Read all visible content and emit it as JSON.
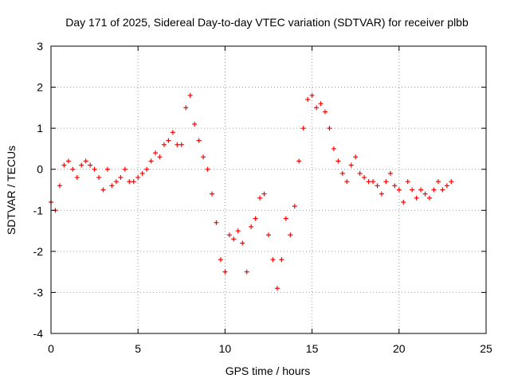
{
  "chart_data": {
    "type": "scatter",
    "title": "Day 171 of 2025, Sidereal Day-to-day VTEC variation (SDTVAR) for receiver plbb",
    "xlabel": "GPS time / hours",
    "ylabel": "SDTVAR / TECUs",
    "xlim": [
      0,
      25
    ],
    "ylim": [
      -4,
      3
    ],
    "x_ticks": [
      0,
      5,
      10,
      15,
      20,
      25
    ],
    "y_ticks": [
      -4,
      -3,
      -2,
      -1,
      0,
      1,
      2,
      3
    ],
    "grid": true,
    "marker": "+",
    "color": "#ff0000",
    "series": [
      {
        "name": "SDTVAR",
        "x": [
          0.0,
          0.25,
          0.5,
          0.75,
          1.0,
          1.25,
          1.5,
          1.75,
          2.0,
          2.25,
          2.5,
          2.75,
          3.0,
          3.25,
          3.5,
          3.75,
          4.0,
          4.25,
          4.5,
          4.75,
          5.0,
          5.25,
          5.5,
          5.75,
          6.0,
          6.25,
          6.5,
          6.75,
          7.0,
          7.25,
          7.5,
          7.75,
          8.0,
          8.25,
          8.5,
          8.75,
          9.0,
          9.25,
          9.5,
          9.75,
          10.0,
          10.25,
          10.5,
          10.75,
          11.0,
          11.25,
          11.5,
          11.75,
          12.0,
          12.25,
          12.5,
          12.75,
          13.0,
          13.25,
          13.5,
          13.75,
          14.0,
          14.25,
          14.5,
          14.75,
          15.0,
          15.25,
          15.5,
          15.75,
          16.0,
          16.25,
          16.5,
          16.75,
          17.0,
          17.25,
          17.5,
          17.75,
          18.0,
          18.25,
          18.5,
          18.75,
          19.0,
          19.25,
          19.5,
          19.75,
          20.0,
          20.25,
          20.5,
          20.75,
          21.0,
          21.25,
          21.5,
          21.75,
          22.0,
          22.25,
          22.5,
          22.75,
          23.0
        ],
        "values": [
          -0.8,
          -1.0,
          -0.4,
          0.1,
          0.2,
          0.0,
          -0.2,
          0.1,
          0.2,
          0.1,
          0.0,
          -0.2,
          -0.5,
          0.0,
          -0.4,
          -0.3,
          -0.2,
          0.0,
          -0.3,
          -0.3,
          -0.2,
          -0.1,
          0.0,
          0.2,
          0.4,
          0.3,
          0.6,
          0.7,
          0.9,
          0.6,
          0.6,
          1.5,
          1.8,
          1.1,
          0.7,
          0.3,
          0.0,
          -0.6,
          -1.3,
          -2.2,
          -2.5,
          -1.6,
          -1.7,
          -1.5,
          -1.8,
          -2.5,
          -1.4,
          -1.2,
          -0.7,
          -0.6,
          -1.6,
          -2.2,
          -2.9,
          -2.2,
          -1.2,
          -1.6,
          -0.9,
          0.2,
          1.0,
          1.7,
          1.8,
          1.5,
          1.6,
          1.4,
          1.0,
          0.5,
          0.2,
          -0.1,
          -0.3,
          0.1,
          0.3,
          -0.1,
          -0.2,
          -0.3,
          -0.3,
          -0.4,
          -0.6,
          -0.3,
          -0.1,
          -0.4,
          -0.5,
          -0.8,
          -0.3,
          -0.5,
          -0.7,
          -0.5,
          -0.6,
          -0.7,
          -0.5,
          -0.3,
          -0.5,
          -0.4,
          -0.3
        ]
      }
    ]
  }
}
